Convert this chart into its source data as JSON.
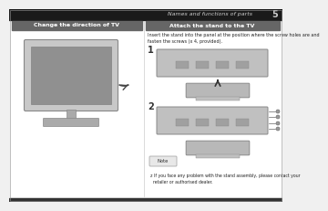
{
  "page_bg": "#f0f0f0",
  "top_bar_color": "#1a1a1a",
  "header_text": "Names and functions of parts",
  "header_text_color": "#cccccc",
  "page_num": "5",
  "page_num_color": "#cccccc",
  "left_title": "Change the direction of TV",
  "left_title_bg": "#666666",
  "left_title_color": "#ffffff",
  "right_title": "Attach the stand to the TV",
  "right_title_bg": "#666666",
  "right_title_color": "#ffffff",
  "instruction_text": "Insert the stand into the panel at the position where the screw holes are and\nfasten the screws (x 4, provided).",
  "step1_label": "1",
  "step2_label": "2",
  "note_box_text": "Note",
  "note_text": "z If you face any problem with the stand assembly, please contact your\n  retailer or authorised dealer.",
  "white_content_bg": "#ffffff",
  "divider_color": "#cccccc",
  "title_bar_color": "#777777",
  "tv_frame_color": "#b0b0b0",
  "tv_screen_color": "#909090",
  "tv_bezel_color": "#c8c8c8",
  "diagram_color": "#b8b8b8",
  "diagram_edge": "#888888",
  "slot_color": "#989898",
  "note_bg": "#e8e8e8",
  "note_border": "#aaaaaa",
  "bottom_bar_color": "#333333",
  "text_color": "#222222",
  "step_label_color": "#333333"
}
